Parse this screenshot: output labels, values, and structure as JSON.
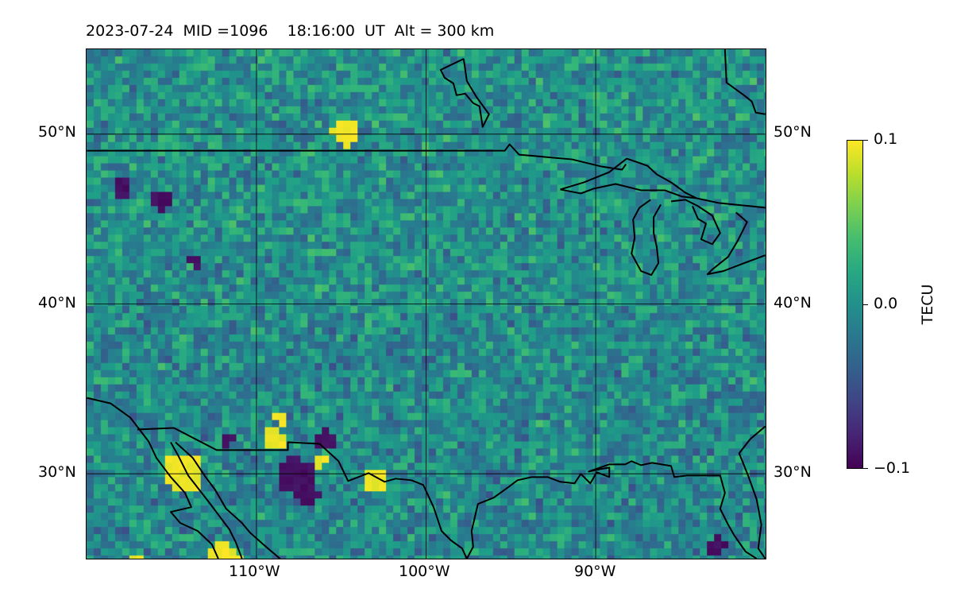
{
  "title": {
    "date": "2023-07-24",
    "mid": "MID =1096",
    "time": "18:16:00  UT",
    "altitude": "Alt = 300 km"
  },
  "map": {
    "region": "United States and Mexico border region (approx. 120°W–80°W, 25°N–55°N)",
    "lon_range": [
      -120,
      -80
    ],
    "lat_range": [
      25,
      55
    ],
    "gridlines": true,
    "lat_ticks": [
      {
        "value": 50,
        "label": "50°N"
      },
      {
        "value": 40,
        "label": "40°N"
      },
      {
        "value": 30,
        "label": "30°N"
      }
    ],
    "lon_ticks": [
      {
        "value": -110,
        "label": "110°W"
      },
      {
        "value": -100,
        "label": "100°W"
      },
      {
        "value": -90,
        "label": "90°W"
      }
    ],
    "colormap": "viridis",
    "gridline_color": "#000000",
    "coastline_color": "#000000"
  },
  "colorbar": {
    "title": "TECU",
    "min_label": "−0.1",
    "mid_label": "0.0",
    "max_label": "0.1",
    "min": -0.1,
    "max": 0.1
  }
}
